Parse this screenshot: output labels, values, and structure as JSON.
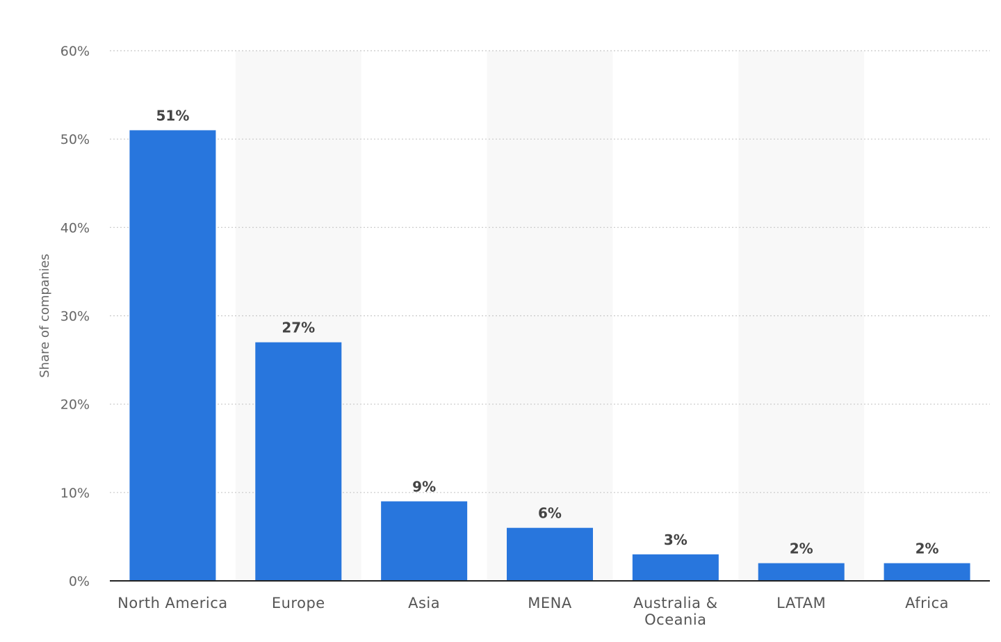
{
  "chart_data": {
    "type": "bar",
    "categories": [
      "North America",
      "Europe",
      "Asia",
      "MENA",
      "Australia & Oceania",
      "LATAM",
      "Africa"
    ],
    "category_label_lines": [
      [
        "North America"
      ],
      [
        "Europe"
      ],
      [
        "Asia"
      ],
      [
        "MENA"
      ],
      [
        "Australia &",
        "Oceania"
      ],
      [
        "LATAM"
      ],
      [
        "Africa"
      ]
    ],
    "values": [
      51,
      27,
      9,
      6,
      3,
      2,
      2
    ],
    "data_labels": [
      "51%",
      "27%",
      "9%",
      "6%",
      "3%",
      "2%",
      "2%"
    ],
    "title": "",
    "xlabel": "",
    "ylabel": "Share of companies",
    "ylim": [
      0,
      60
    ],
    "yticks": [
      0,
      10,
      20,
      30,
      40,
      50,
      60
    ],
    "ytick_labels": [
      "0%",
      "10%",
      "20%",
      "30%",
      "40%",
      "50%",
      "60%"
    ],
    "grid": true,
    "alternating_column_shading": true,
    "legend": "none",
    "colors": {
      "bar": "#2876DD",
      "band": "#F8F8F8",
      "grid": "#C8C8C8",
      "axis": "#222222"
    }
  }
}
